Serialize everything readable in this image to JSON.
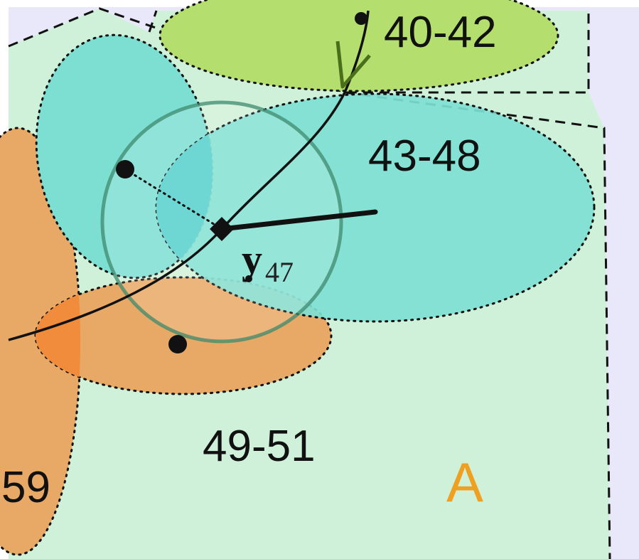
{
  "figure": {
    "labels": {
      "region_40_42": "40-42",
      "region_43_48": "43-48",
      "region_49_51": "49-51",
      "region_partial_59": "59",
      "zone_a": "A"
    },
    "variable": {
      "symbol": "y",
      "subscript": "47"
    },
    "colors": {
      "background": "#ffffff",
      "zone_fill": "#d0f1d9",
      "outer_fill": "#e8e8fa",
      "teal_region": "#7ddfd2",
      "teal_overlap": "#55d0cc",
      "green_region": "#b4de6e",
      "orange_region": "#e8a866",
      "orange_overlap": "#f08c3c",
      "zone_label": "#f0a020",
      "circle_stroke": "#3e8a6e",
      "ink": "#111111"
    }
  }
}
